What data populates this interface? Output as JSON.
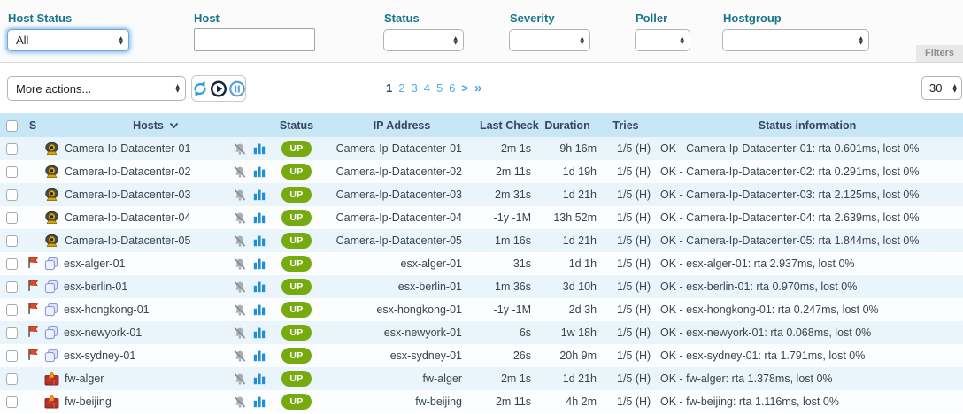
{
  "colors": {
    "accent_blue": "#55ade8",
    "header_bg": "#c7e6f6",
    "row_alt_bg": "#eaf4fb",
    "up_green": "#76aa0e",
    "label_teal": "#17758a",
    "bar_blue": "#1f8fd8"
  },
  "filters": {
    "panel_label": "Filters",
    "host_status": {
      "label": "Host Status",
      "value": "All"
    },
    "host": {
      "label": "Host",
      "value": "",
      "placeholder": ""
    },
    "status": {
      "label": "Status",
      "value": ""
    },
    "severity": {
      "label": "Severity",
      "value": ""
    },
    "poller": {
      "label": "Poller",
      "value": ""
    },
    "hostgroup": {
      "label": "Hostgroup",
      "value": ""
    }
  },
  "toolbar": {
    "more_actions_label": "More actions...",
    "icons": [
      "refresh-icon",
      "play-icon",
      "pause-icon"
    ],
    "per_page": "30"
  },
  "pagination": {
    "current": "1",
    "pages": [
      "2",
      "3",
      "4",
      "5",
      "6"
    ],
    "next": ">",
    "last": "»"
  },
  "table": {
    "headers": {
      "severity": "S",
      "hosts": "Hosts",
      "status": "Status",
      "ip": "IP Address",
      "last_check": "Last Check",
      "duration": "Duration",
      "tries": "Tries",
      "info": "Status information"
    },
    "rows": [
      {
        "severity_flag": false,
        "host_icon": "camera-icon",
        "host": "Camera-Ip-Datacenter-01",
        "status": "UP",
        "ip": "Camera-Ip-Datacenter-01",
        "last_check": "2m 1s",
        "duration": "9h 16m",
        "tries": "1/5 (H)",
        "info": "OK - Camera-Ip-Datacenter-01: rta 0.601ms, lost 0%"
      },
      {
        "severity_flag": false,
        "host_icon": "camera-icon",
        "host": "Camera-Ip-Datacenter-02",
        "status": "UP",
        "ip": "Camera-Ip-Datacenter-02",
        "last_check": "2m 11s",
        "duration": "1d 19h",
        "tries": "1/5 (H)",
        "info": "OK - Camera-Ip-Datacenter-02: rta 0.291ms, lost 0%"
      },
      {
        "severity_flag": false,
        "host_icon": "camera-icon",
        "host": "Camera-Ip-Datacenter-03",
        "status": "UP",
        "ip": "Camera-Ip-Datacenter-03",
        "last_check": "2m 31s",
        "duration": "1d 21h",
        "tries": "1/5 (H)",
        "info": "OK - Camera-Ip-Datacenter-03: rta 2.125ms, lost 0%"
      },
      {
        "severity_flag": false,
        "host_icon": "camera-icon",
        "host": "Camera-Ip-Datacenter-04",
        "status": "UP",
        "ip": "Camera-Ip-Datacenter-04",
        "last_check": "-1y -1M",
        "duration": "13h 52m",
        "tries": "1/5 (H)",
        "info": "OK - Camera-Ip-Datacenter-04: rta 2.639ms, lost 0%"
      },
      {
        "severity_flag": false,
        "host_icon": "camera-icon",
        "host": "Camera-Ip-Datacenter-05",
        "status": "UP",
        "ip": "Camera-Ip-Datacenter-05",
        "last_check": "1m 16s",
        "duration": "1d 21h",
        "tries": "1/5 (H)",
        "info": "OK - Camera-Ip-Datacenter-05: rta 1.844ms, lost 0%"
      },
      {
        "severity_flag": true,
        "host_icon": "vm-icon",
        "host": "esx-alger-01",
        "status": "UP",
        "ip": "esx-alger-01",
        "last_check": "31s",
        "duration": "1d 1h",
        "tries": "1/5 (H)",
        "info": "OK - esx-alger-01: rta 2.937ms, lost 0%"
      },
      {
        "severity_flag": true,
        "host_icon": "vm-icon",
        "host": "esx-berlin-01",
        "status": "UP",
        "ip": "esx-berlin-01",
        "last_check": "1m 36s",
        "duration": "3d 10h",
        "tries": "1/5 (H)",
        "info": "OK - esx-berlin-01: rta 0.970ms, lost 0%"
      },
      {
        "severity_flag": true,
        "host_icon": "vm-icon",
        "host": "esx-hongkong-01",
        "status": "UP",
        "ip": "esx-hongkong-01",
        "last_check": "-1y -1M",
        "duration": "2d 3h",
        "tries": "1/5 (H)",
        "info": "OK - esx-hongkong-01: rta 0.247ms, lost 0%"
      },
      {
        "severity_flag": true,
        "host_icon": "vm-icon",
        "host": "esx-newyork-01",
        "status": "UP",
        "ip": "esx-newyork-01",
        "last_check": "6s",
        "duration": "1w 18h",
        "tries": "1/5 (H)",
        "info": "OK - esx-newyork-01: rta 0.068ms, lost 0%"
      },
      {
        "severity_flag": true,
        "host_icon": "vm-icon",
        "host": "esx-sydney-01",
        "status": "UP",
        "ip": "esx-sydney-01",
        "last_check": "26s",
        "duration": "20h 9m",
        "tries": "1/5 (H)",
        "info": "OK - esx-sydney-01: rta 1.791ms, lost 0%"
      },
      {
        "severity_flag": false,
        "host_icon": "firewall-icon",
        "host": "fw-alger",
        "status": "UP",
        "ip": "fw-alger",
        "last_check": "2m 1s",
        "duration": "1d 21h",
        "tries": "1/5 (H)",
        "info": "OK - fw-alger: rta 1.378ms, lost 0%"
      },
      {
        "severity_flag": false,
        "host_icon": "firewall-icon",
        "host": "fw-beijing",
        "status": "UP",
        "ip": "fw-beijing",
        "last_check": "2m 11s",
        "duration": "4h 2m",
        "tries": "1/5 (H)",
        "info": "OK - fw-beijing: rta 1.116ms, lost 0%"
      }
    ]
  }
}
